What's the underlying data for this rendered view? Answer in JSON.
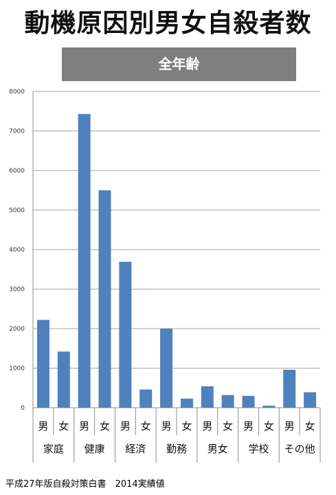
{
  "title": "動機原因別男女自殺者数",
  "subtitle": "全年齢",
  "source": "平成27年版自殺対策白書　2014実績値",
  "colors": {
    "bar": "#4f81bd",
    "grid": "#a6a6a6",
    "banner": "#7f7f7f"
  },
  "chart_data": {
    "type": "bar",
    "title": "全年齢",
    "ylim": [
      0,
      8000
    ],
    "yticks": [
      0,
      1000,
      2000,
      3000,
      4000,
      5000,
      6000,
      7000,
      8000
    ],
    "grid": true,
    "legend": "none",
    "categories": [
      "男",
      "女",
      "男",
      "女",
      "男",
      "女",
      "男",
      "女",
      "男",
      "女",
      "男",
      "女",
      "男",
      "女"
    ],
    "groups": [
      "家庭",
      "健康",
      "経済",
      "勤務",
      "男女",
      "学校",
      "その他"
    ],
    "values": [
      2220,
      1420,
      7430,
      5500,
      3690,
      460,
      2000,
      230,
      540,
      320,
      300,
      50,
      960,
      390
    ]
  }
}
